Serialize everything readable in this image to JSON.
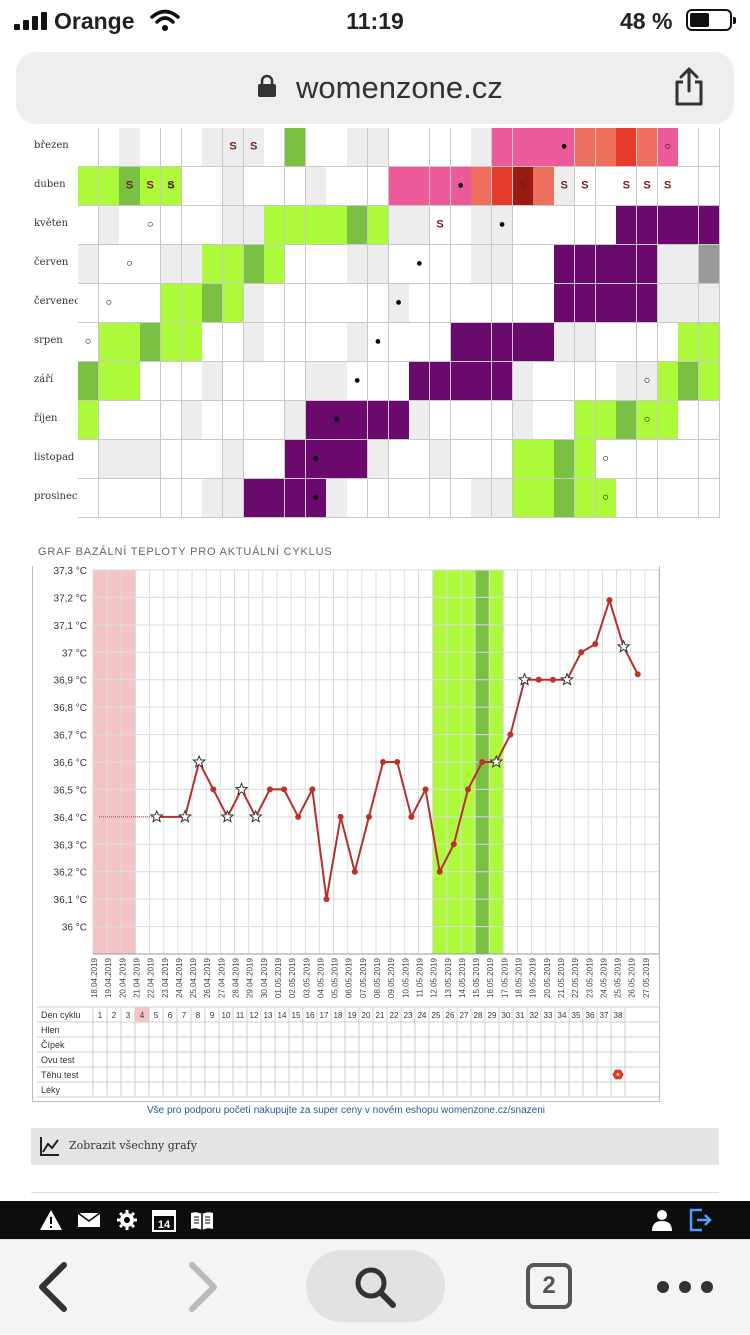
{
  "status_bar": {
    "carrier": "Orange",
    "time": "11:19",
    "battery": "48 %",
    "battery_level": 0.48
  },
  "browser": {
    "domain": "womenzone.cz",
    "tabs_count": "2"
  },
  "calendar": {
    "months": [
      "březen",
      "duben",
      "květen",
      "červen",
      "červenec",
      "srpen",
      "září",
      "říjen",
      "listopad",
      "prosinec"
    ],
    "colors": {
      "fertile": "#adfa3a",
      "fertile_dark": "#7ac043",
      "period": "#ed5a99",
      "luteal": "#6a0a6c",
      "weekend": "#ededed",
      "future": "#9a9a9a"
    }
  },
  "chart_title": "GRAF BAZÁLNÍ TEPLOTY PRO AKTUÁLNÍ CYKLUS",
  "chart_data": {
    "type": "line",
    "ylim": [
      35.9,
      37.3
    ],
    "y_ticks": [
      "37,3 °C",
      "37,2 °C",
      "37,1 °C",
      "37 °C",
      "36,9 °C",
      "36,8 °C",
      "36,7 °C",
      "36,6 °C",
      "36,5 °C",
      "36,4 °C",
      "36,3 °C",
      "36,2 °C",
      "36,1 °C",
      "36 °C"
    ],
    "x_dates": [
      "18.04.2019",
      "19.04.2019",
      "20.04.2019",
      "21.04.2019",
      "22.04.2019",
      "23.04.2019",
      "24.04.2019",
      "25.04.2019",
      "26.04.2019",
      "27.04.2019",
      "28.04.2019",
      "29.04.2019",
      "30.04.2019",
      "01.05.2019",
      "02.05.2019",
      "03.05.2019",
      "04.05.2019",
      "05.05.2019",
      "06.05.2019",
      "07.05.2019",
      "08.05.2019",
      "09.05.2019",
      "10.05.2019",
      "11.05.2019",
      "12.05.2019",
      "13.05.2019",
      "14.05.2019",
      "15.05.2019",
      "16.05.2019",
      "17.05.2019",
      "18.05.2019",
      "19.05.2019",
      "20.05.2019",
      "21.05.2019",
      "22.05.2019",
      "23.05.2019",
      "24.05.2019",
      "25.05.2019",
      "26.05.2019",
      "27.05.2019"
    ],
    "series": [
      {
        "values": [
          null,
          null,
          null,
          null,
          36.4,
          null,
          36.4,
          36.6,
          36.5,
          36.4,
          36.5,
          36.4,
          36.5,
          36.5,
          36.4,
          36.5,
          36.1,
          36.4,
          36.2,
          36.4,
          36.6,
          36.6,
          36.4,
          36.5,
          36.2,
          36.3,
          36.5,
          36.6,
          36.6,
          36.7,
          36.9,
          36.9,
          36.9,
          36.9,
          37.0,
          37.03,
          37.19,
          37.02,
          36.92,
          null
        ],
        "stars": [
          4,
          6,
          7,
          9,
          10,
          11,
          28,
          30,
          33,
          37
        ]
      }
    ],
    "period_days": [
      1,
      3
    ],
    "fertile_range": [
      25,
      29
    ],
    "ovulation_day": 28
  },
  "cycle_table": {
    "row_labels": [
      "Den cyklu",
      "Hlen",
      "Čípek",
      "Ovu test",
      "Těhu test",
      "Léky"
    ],
    "days": [
      "1",
      "2",
      "3",
      "4",
      "5",
      "6",
      "7",
      "8",
      "9",
      "10",
      "11",
      "12",
      "13",
      "14",
      "15",
      "16",
      "17",
      "18",
      "19",
      "20",
      "21",
      "22",
      "23",
      "24",
      "25",
      "26",
      "27",
      "28",
      "29",
      "30",
      "31",
      "32",
      "33",
      "34",
      "35",
      "36",
      "37",
      "38"
    ],
    "highlight_day": "4",
    "pregnancy_test_day": "38"
  },
  "promo_text": "Vše pro podporu početí nakupujte za super ceny v novém eshopu womenzone.cz/snazeni",
  "all_charts_label": "Zobrazit všechny grafy"
}
